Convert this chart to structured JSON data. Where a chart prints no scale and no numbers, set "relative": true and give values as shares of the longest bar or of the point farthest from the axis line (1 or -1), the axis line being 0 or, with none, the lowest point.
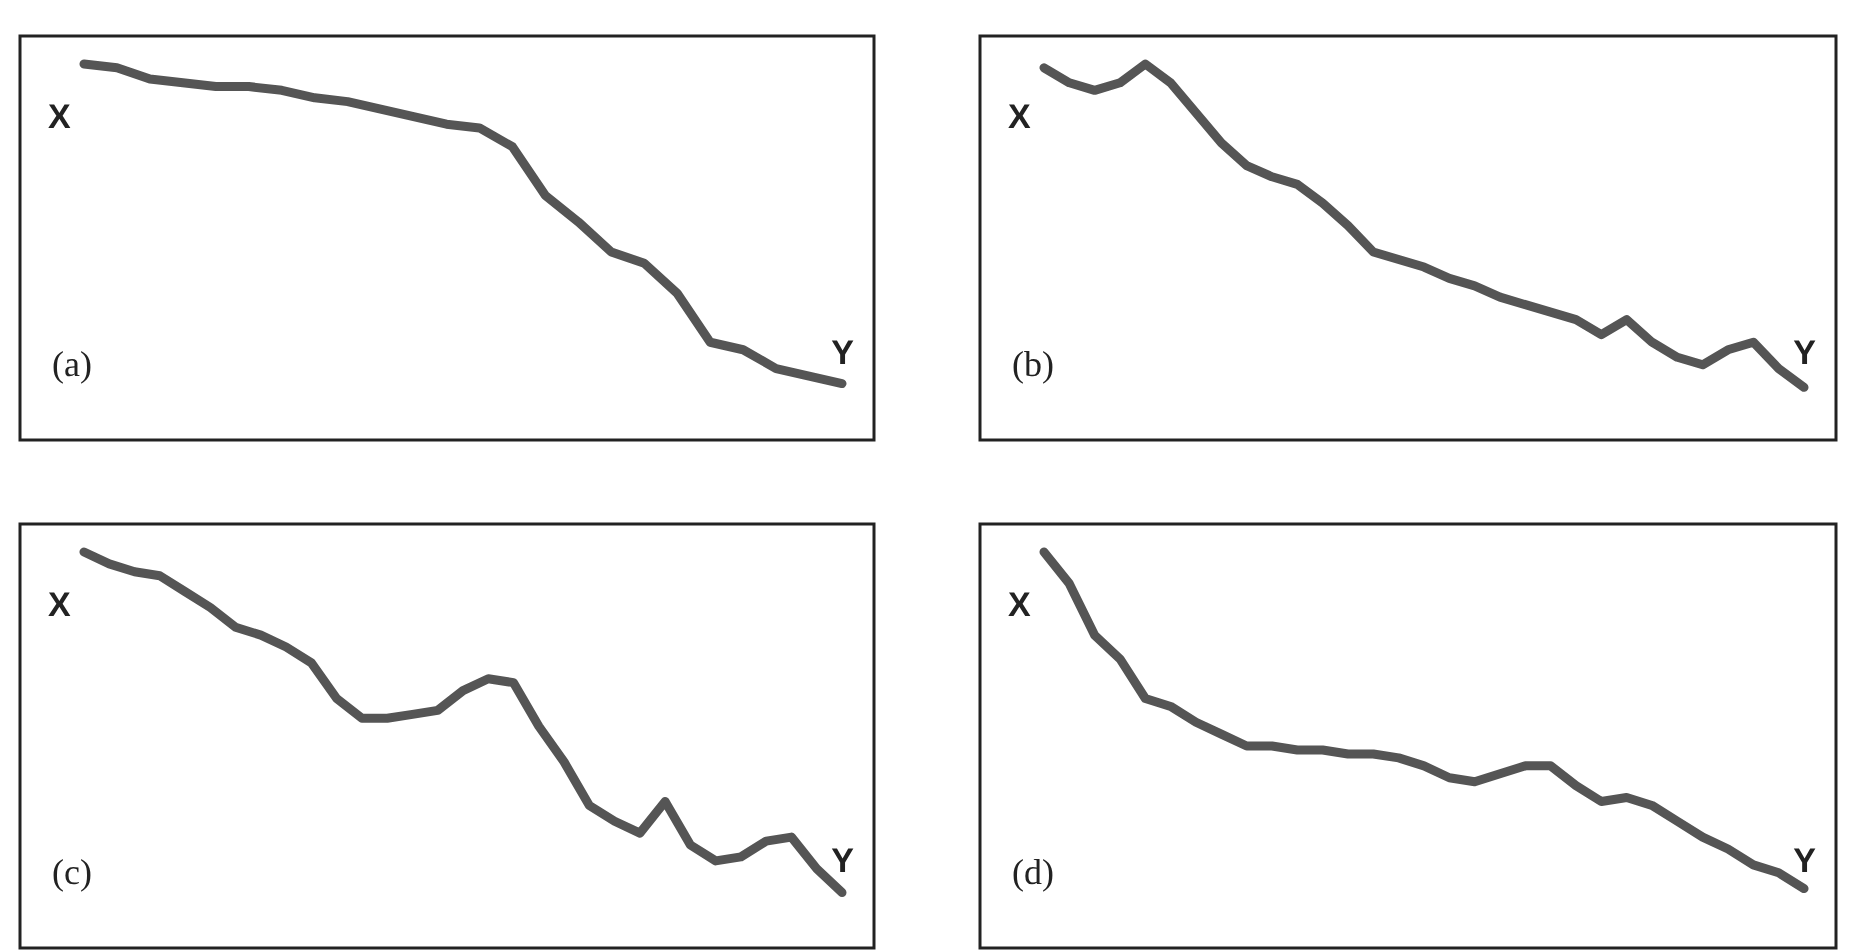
{
  "chart_data": [
    {
      "type": "line",
      "relative": true,
      "annotations": [
        "X",
        "Y",
        "(a)"
      ],
      "categories": [
        null,
        null,
        null,
        null,
        null,
        null,
        null,
        null,
        null,
        null,
        null,
        null,
        null,
        null,
        null,
        null,
        null,
        null,
        null,
        null,
        null,
        null,
        null,
        null
      ],
      "series": [
        {
          "color": "#555555",
          "values": [
            1,
            0.99,
            0.96,
            0.95,
            0.94,
            0.94,
            0.93,
            0.91,
            0.9,
            0.88,
            0.86,
            0.84,
            0.83,
            0.78,
            0.65,
            0.58,
            0.5,
            0.47,
            0.39,
            0.26,
            0.24,
            0.19,
            0.17,
            0.15
          ]
        }
      ]
    },
    {
      "type": "line",
      "relative": true,
      "annotations": [
        "X",
        "Y",
        "(b)"
      ],
      "categories": [
        null,
        null,
        null,
        null,
        null,
        null,
        null,
        null,
        null,
        null,
        null,
        null,
        null,
        null,
        null,
        null,
        null,
        null,
        null,
        null,
        null,
        null,
        null,
        null,
        null,
        null,
        null,
        null,
        null,
        null,
        null
      ],
      "series": [
        {
          "color": "#555555",
          "values": [
            0.99,
            0.95,
            0.93,
            0.95,
            1,
            0.95,
            0.87,
            0.79,
            0.73,
            0.7,
            0.68,
            0.63,
            0.57,
            0.5,
            0.48,
            0.46,
            0.43,
            0.41,
            0.38,
            0.36,
            0.34,
            0.32,
            0.28,
            0.32,
            0.26,
            0.22,
            0.2,
            0.24,
            0.26,
            0.19,
            0.14
          ]
        }
      ]
    },
    {
      "type": "line",
      "relative": true,
      "annotations": [
        "X",
        "Y",
        "(c)"
      ],
      "categories": [
        null,
        null,
        null,
        null,
        null,
        null,
        null,
        null,
        null,
        null,
        null,
        null,
        null,
        null,
        null,
        null,
        null,
        null,
        null,
        null,
        null,
        null,
        null,
        null,
        null,
        null,
        null,
        null,
        null,
        null,
        null
      ],
      "series": [
        {
          "color": "#555555",
          "values": [
            1,
            0.97,
            0.95,
            0.94,
            0.9,
            0.86,
            0.81,
            0.79,
            0.76,
            0.72,
            0.63,
            0.58,
            0.58,
            0.59,
            0.6,
            0.65,
            0.68,
            0.67,
            0.56,
            0.47,
            0.36,
            0.32,
            0.29,
            0.37,
            0.26,
            0.22,
            0.23,
            0.27,
            0.28,
            0.2,
            0.14
          ]
        }
      ]
    },
    {
      "type": "line",
      "relative": true,
      "annotations": [
        "X",
        "Y",
        "(d)"
      ],
      "categories": [
        null,
        null,
        null,
        null,
        null,
        null,
        null,
        null,
        null,
        null,
        null,
        null,
        null,
        null,
        null,
        null,
        null,
        null,
        null,
        null,
        null,
        null,
        null,
        null,
        null,
        null,
        null,
        null,
        null,
        null,
        null
      ],
      "series": [
        {
          "color": "#555555",
          "values": [
            1,
            0.92,
            0.79,
            0.73,
            0.63,
            0.61,
            0.57,
            0.54,
            0.51,
            0.51,
            0.5,
            0.5,
            0.49,
            0.49,
            0.48,
            0.46,
            0.43,
            0.42,
            0.44,
            0.46,
            0.46,
            0.41,
            0.37,
            0.38,
            0.36,
            0.32,
            0.28,
            0.25,
            0.21,
            0.19,
            0.15
          ]
        }
      ]
    }
  ]
}
